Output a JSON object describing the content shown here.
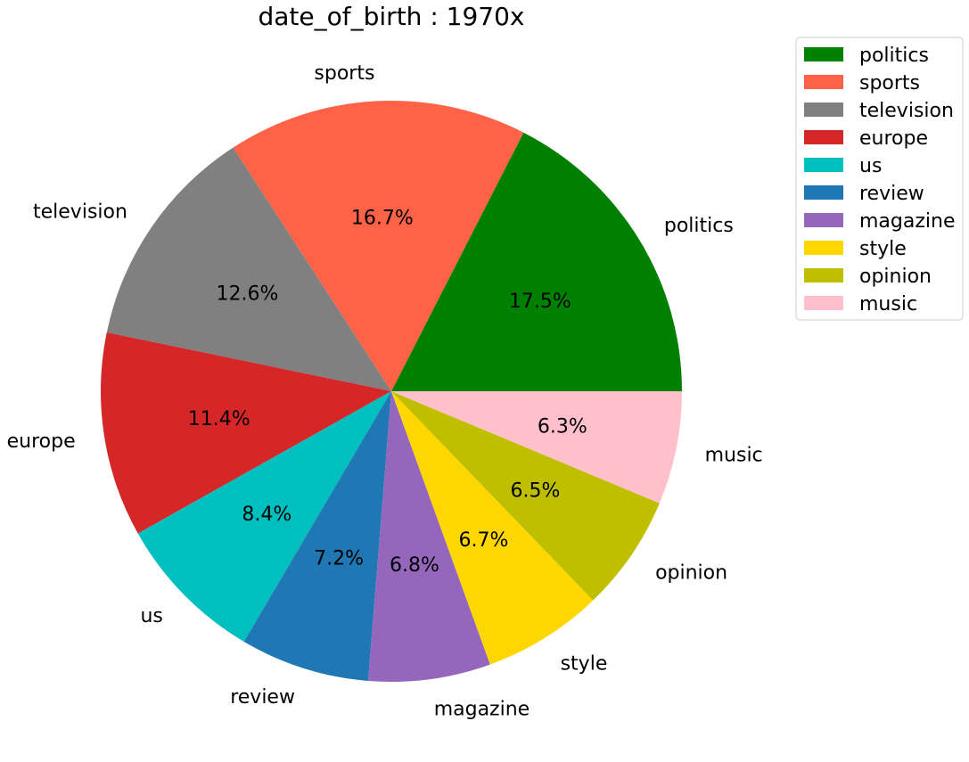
{
  "chart_data": {
    "type": "pie",
    "title": "date_of_birth : 1970x",
    "legend_position": "top-right",
    "slices": [
      {
        "label": "politics",
        "value": 17.5,
        "pct_label": "17.5%",
        "color": "#008000"
      },
      {
        "label": "sports",
        "value": 16.7,
        "pct_label": "16.7%",
        "color": "#ff6347"
      },
      {
        "label": "television",
        "value": 12.6,
        "pct_label": "12.6%",
        "color": "#808080"
      },
      {
        "label": "europe",
        "value": 11.4,
        "pct_label": "11.4%",
        "color": "#d62728"
      },
      {
        "label": "us",
        "value": 8.4,
        "pct_label": "8.4%",
        "color": "#00bfbf"
      },
      {
        "label": "review",
        "value": 7.2,
        "pct_label": "7.2%",
        "color": "#1f77b4"
      },
      {
        "label": "magazine",
        "value": 6.8,
        "pct_label": "6.8%",
        "color": "#9467bd"
      },
      {
        "label": "style",
        "value": 6.7,
        "pct_label": "6.7%",
        "color": "#ffd700"
      },
      {
        "label": "opinion",
        "value": 6.5,
        "pct_label": "6.5%",
        "color": "#bfbf00"
      },
      {
        "label": "music",
        "value": 6.3,
        "pct_label": "6.3%",
        "color": "#ffc0cb"
      }
    ]
  }
}
